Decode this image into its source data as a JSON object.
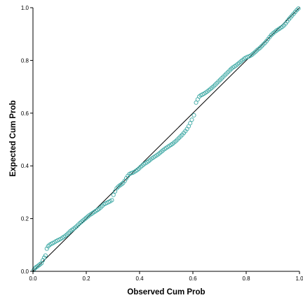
{
  "chart_data": {
    "type": "scatter",
    "title": "",
    "xlabel": "Observed Cum Prob",
    "ylabel": "Expected Cum Prob",
    "xlim": [
      0,
      1
    ],
    "ylim": [
      0,
      1
    ],
    "xticks": [
      0.0,
      0.2,
      0.4,
      0.6,
      0.8,
      1.0
    ],
    "yticks": [
      0.0,
      0.2,
      0.4,
      0.6,
      0.8,
      1.0
    ],
    "xtick_labels": [
      "0.0",
      "0.2",
      "0.4",
      "0.6",
      "0.8",
      "1.0"
    ],
    "ytick_labels": [
      "0.0",
      "0.2",
      "0.4",
      "0.6",
      "0.8",
      "1.0"
    ],
    "grid": false,
    "reference_line": [
      [
        0,
        0
      ],
      [
        1,
        1
      ]
    ],
    "marker": "open-circle",
    "point_color": "#3fa9a5",
    "line_color": "#000000",
    "points": [
      [
        0.003,
        0.005
      ],
      [
        0.008,
        0.012
      ],
      [
        0.012,
        0.016
      ],
      [
        0.017,
        0.019
      ],
      [
        0.022,
        0.023
      ],
      [
        0.027,
        0.027
      ],
      [
        0.032,
        0.031
      ],
      [
        0.037,
        0.042
      ],
      [
        0.042,
        0.052
      ],
      [
        0.047,
        0.06
      ],
      [
        0.052,
        0.086
      ],
      [
        0.057,
        0.095
      ],
      [
        0.062,
        0.1
      ],
      [
        0.068,
        0.104
      ],
      [
        0.074,
        0.107
      ],
      [
        0.08,
        0.11
      ],
      [
        0.086,
        0.114
      ],
      [
        0.092,
        0.117
      ],
      [
        0.098,
        0.12
      ],
      [
        0.104,
        0.123
      ],
      [
        0.11,
        0.127
      ],
      [
        0.116,
        0.131
      ],
      [
        0.122,
        0.135
      ],
      [
        0.128,
        0.14
      ],
      [
        0.134,
        0.146
      ],
      [
        0.14,
        0.152
      ],
      [
        0.146,
        0.157
      ],
      [
        0.152,
        0.161
      ],
      [
        0.158,
        0.166
      ],
      [
        0.164,
        0.171
      ],
      [
        0.17,
        0.177
      ],
      [
        0.176,
        0.183
      ],
      [
        0.182,
        0.188
      ],
      [
        0.188,
        0.193
      ],
      [
        0.194,
        0.198
      ],
      [
        0.2,
        0.203
      ],
      [
        0.206,
        0.208
      ],
      [
        0.212,
        0.213
      ],
      [
        0.218,
        0.217
      ],
      [
        0.224,
        0.221
      ],
      [
        0.23,
        0.225
      ],
      [
        0.236,
        0.229
      ],
      [
        0.242,
        0.233
      ],
      [
        0.248,
        0.237
      ],
      [
        0.254,
        0.242
      ],
      [
        0.26,
        0.248
      ],
      [
        0.266,
        0.254
      ],
      [
        0.272,
        0.257
      ],
      [
        0.278,
        0.26
      ],
      [
        0.284,
        0.263
      ],
      [
        0.29,
        0.266
      ],
      [
        0.296,
        0.27
      ],
      [
        0.302,
        0.29
      ],
      [
        0.308,
        0.303
      ],
      [
        0.314,
        0.315
      ],
      [
        0.32,
        0.321
      ],
      [
        0.326,
        0.326
      ],
      [
        0.332,
        0.33
      ],
      [
        0.338,
        0.335
      ],
      [
        0.344,
        0.343
      ],
      [
        0.35,
        0.353
      ],
      [
        0.356,
        0.362
      ],
      [
        0.362,
        0.369
      ],
      [
        0.368,
        0.372
      ],
      [
        0.374,
        0.374
      ],
      [
        0.38,
        0.377
      ],
      [
        0.386,
        0.381
      ],
      [
        0.392,
        0.385
      ],
      [
        0.398,
        0.39
      ],
      [
        0.404,
        0.396
      ],
      [
        0.41,
        0.401
      ],
      [
        0.416,
        0.406
      ],
      [
        0.422,
        0.41
      ],
      [
        0.428,
        0.414
      ],
      [
        0.434,
        0.418
      ],
      [
        0.44,
        0.423
      ],
      [
        0.446,
        0.428
      ],
      [
        0.452,
        0.432
      ],
      [
        0.458,
        0.436
      ],
      [
        0.464,
        0.44
      ],
      [
        0.47,
        0.444
      ],
      [
        0.476,
        0.449
      ],
      [
        0.482,
        0.454
      ],
      [
        0.488,
        0.459
      ],
      [
        0.494,
        0.464
      ],
      [
        0.5,
        0.468
      ],
      [
        0.506,
        0.472
      ],
      [
        0.512,
        0.476
      ],
      [
        0.518,
        0.48
      ],
      [
        0.524,
        0.484
      ],
      [
        0.53,
        0.489
      ],
      [
        0.536,
        0.494
      ],
      [
        0.542,
        0.5
      ],
      [
        0.548,
        0.506
      ],
      [
        0.554,
        0.512
      ],
      [
        0.56,
        0.518
      ],
      [
        0.566,
        0.525
      ],
      [
        0.572,
        0.532
      ],
      [
        0.578,
        0.54
      ],
      [
        0.584,
        0.55
      ],
      [
        0.59,
        0.562
      ],
      [
        0.596,
        0.575
      ],
      [
        0.604,
        0.592
      ],
      [
        0.612,
        0.64
      ],
      [
        0.618,
        0.652
      ],
      [
        0.624,
        0.663
      ],
      [
        0.63,
        0.668
      ],
      [
        0.636,
        0.671
      ],
      [
        0.642,
        0.674
      ],
      [
        0.648,
        0.678
      ],
      [
        0.654,
        0.682
      ],
      [
        0.66,
        0.687
      ],
      [
        0.666,
        0.692
      ],
      [
        0.672,
        0.697
      ],
      [
        0.678,
        0.702
      ],
      [
        0.684,
        0.708
      ],
      [
        0.69,
        0.714
      ],
      [
        0.696,
        0.72
      ],
      [
        0.702,
        0.726
      ],
      [
        0.708,
        0.732
      ],
      [
        0.714,
        0.738
      ],
      [
        0.72,
        0.744
      ],
      [
        0.726,
        0.75
      ],
      [
        0.732,
        0.756
      ],
      [
        0.738,
        0.762
      ],
      [
        0.744,
        0.768
      ],
      [
        0.75,
        0.773
      ],
      [
        0.756,
        0.777
      ],
      [
        0.762,
        0.781
      ],
      [
        0.768,
        0.786
      ],
      [
        0.774,
        0.791
      ],
      [
        0.78,
        0.796
      ],
      [
        0.786,
        0.801
      ],
      [
        0.792,
        0.806
      ],
      [
        0.798,
        0.81
      ],
      [
        0.804,
        0.813
      ],
      [
        0.81,
        0.815
      ],
      [
        0.816,
        0.818
      ],
      [
        0.822,
        0.822
      ],
      [
        0.828,
        0.827
      ],
      [
        0.834,
        0.832
      ],
      [
        0.84,
        0.838
      ],
      [
        0.846,
        0.843
      ],
      [
        0.852,
        0.848
      ],
      [
        0.858,
        0.854
      ],
      [
        0.864,
        0.86
      ],
      [
        0.87,
        0.866
      ],
      [
        0.876,
        0.873
      ],
      [
        0.882,
        0.881
      ],
      [
        0.888,
        0.889
      ],
      [
        0.894,
        0.896
      ],
      [
        0.9,
        0.902
      ],
      [
        0.906,
        0.907
      ],
      [
        0.912,
        0.912
      ],
      [
        0.918,
        0.916
      ],
      [
        0.924,
        0.92
      ],
      [
        0.93,
        0.924
      ],
      [
        0.936,
        0.928
      ],
      [
        0.942,
        0.933
      ],
      [
        0.948,
        0.94
      ],
      [
        0.954,
        0.948
      ],
      [
        0.96,
        0.956
      ],
      [
        0.966,
        0.963
      ],
      [
        0.972,
        0.97
      ],
      [
        0.978,
        0.977
      ],
      [
        0.984,
        0.984
      ],
      [
        0.99,
        0.991
      ],
      [
        0.996,
        0.997
      ]
    ]
  }
}
